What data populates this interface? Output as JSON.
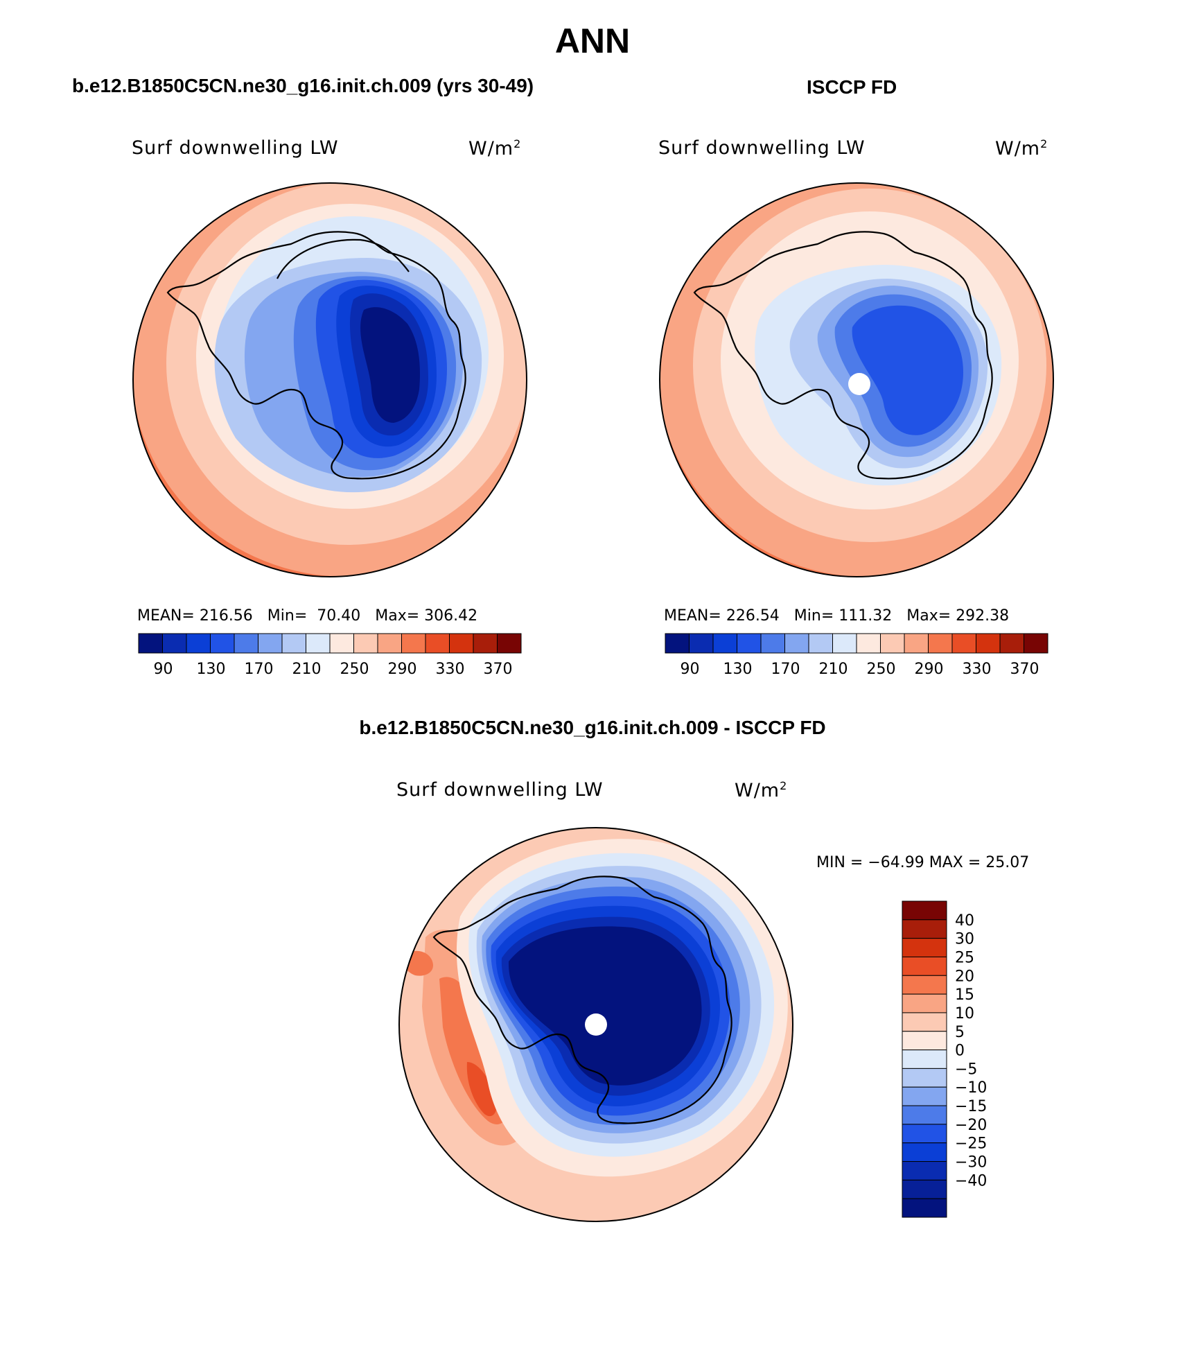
{
  "page_title": "ANN",
  "panels": [
    {
      "case_title": "b.e12.B1850C5CN.ne30_g16.init.ch.009 (yrs 30-49)",
      "variable": "Surf downwelling LW",
      "units_base": "W/m",
      "units_exp": "2",
      "stats": {
        "mean_label": "MEAN=",
        "mean": "216.56",
        "min_label": "Min=",
        "min": "70.40",
        "max_label": "Max=",
        "max": "306.42"
      }
    },
    {
      "case_title": "ISCCP FD",
      "variable": "Surf downwelling LW",
      "units_base": "W/m",
      "units_exp": "2",
      "stats": {
        "mean_label": "MEAN=",
        "mean": "226.54",
        "min_label": "Min=",
        "min": "111.32",
        "max_label": "Max=",
        "max": "292.38"
      }
    },
    {
      "case_title": "b.e12.B1850C5CN.ne30_g16.init.ch.009 - ISCCP FD",
      "variable": "Surf downwelling LW",
      "units_base": "W/m",
      "units_exp": "2",
      "stats_text": "MIN = −64.99 MAX =  25.07"
    }
  ],
  "chart_data": [
    {
      "type": "heatmap",
      "projection": "south polar stereographic",
      "title": "b.e12.B1850C5CN.ne30_g16.init.ch.009 (yrs 30-49)",
      "variable": "Surf downwelling LW",
      "units": "W/m2",
      "mean": 216.56,
      "min": 70.4,
      "max": 306.42,
      "colorbar_orientation": "horizontal",
      "colorbar_tick_labels": [
        "90",
        "130",
        "170",
        "210",
        "250",
        "290",
        "330",
        "370"
      ],
      "colorbar_levels": [
        70,
        90,
        110,
        130,
        150,
        170,
        190,
        210,
        230,
        250,
        270,
        290,
        310,
        330,
        350,
        370
      ],
      "pattern": "lowest values (<90) over East Antarctic plateau, increasing outward to ~300 at the circle edge"
    },
    {
      "type": "heatmap",
      "projection": "south polar stereographic",
      "title": "ISCCP FD",
      "variable": "Surf downwelling LW",
      "units": "W/m2",
      "mean": 226.54,
      "min": 111.32,
      "max": 292.38,
      "colorbar_orientation": "horizontal",
      "colorbar_tick_labels": [
        "90",
        "130",
        "170",
        "210",
        "250",
        "290",
        "330",
        "370"
      ],
      "colorbar_levels": [
        70,
        90,
        110,
        130,
        150,
        170,
        190,
        210,
        230,
        250,
        270,
        290,
        310,
        330,
        350,
        370
      ],
      "pattern": "minimum ~130-170 over East Antarctica, missing data at the pole, values rising to ~290 at the edge"
    },
    {
      "type": "heatmap",
      "projection": "south polar stereographic",
      "title": "b.e12.B1850C5CN.ne30_g16.init.ch.009 - ISCCP FD",
      "variable": "Surf downwelling LW",
      "units": "W/m2",
      "min": -64.99,
      "max": 25.07,
      "colorbar_orientation": "vertical",
      "colorbar_tick_labels": [
        "40",
        "30",
        "25",
        "20",
        "15",
        "10",
        "5",
        "0",
        "−5",
        "−10",
        "−15",
        "−20",
        "−25",
        "−30",
        "−40"
      ],
      "pattern": "strongly negative (< -40) over the Antarctic continent, near zero over the surrounding ocean, positive (10-20) in the Pacific sector"
    }
  ],
  "colors": {
    "diverging": [
      "#03137e",
      "#0a2cb1",
      "#0b3fd6",
      "#2153e6",
      "#4d7be9",
      "#83a6f0",
      "#b3c9f4",
      "#dce9fa",
      "#fde9df",
      "#fccab4",
      "#f9a584",
      "#f4774d",
      "#e94e26",
      "#d4330e",
      "#a81e0a",
      "#780504"
    ],
    "difference": [
      "#03137e",
      "#072098",
      "#0a2cb1",
      "#0b3fd6",
      "#2153e6",
      "#4d7be9",
      "#83a6f0",
      "#b3c9f4",
      "#dce9fa",
      "#fde9df",
      "#fccab4",
      "#f9a584",
      "#f4774d",
      "#e94e26",
      "#d4330e",
      "#a81e0a",
      "#780504"
    ]
  }
}
